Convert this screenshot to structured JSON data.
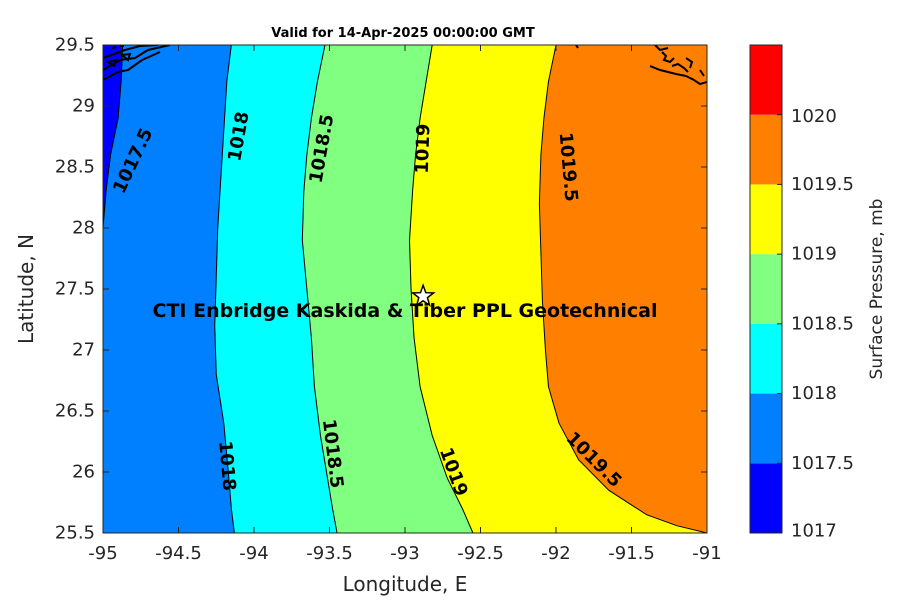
{
  "chart_data": {
    "type": "contour",
    "title": "Valid for 14-Apr-2025 00:00:00 GMT",
    "xlabel": "Longitude, E",
    "ylabel": "Latitude, N",
    "xlim": [
      -95,
      -91
    ],
    "ylim": [
      25.5,
      29.5
    ],
    "x_ticks": [
      -95,
      -94.5,
      -94,
      -93.5,
      -93,
      -92.5,
      -92,
      -91.5,
      -91
    ],
    "y_ticks": [
      25.5,
      26,
      26.5,
      27,
      27.5,
      28,
      28.5,
      29,
      29.5
    ],
    "colorbar": {
      "label": "Surface Pressure, mb",
      "ticks": [
        1017,
        1017.5,
        1018,
        1018.5,
        1019,
        1019.5,
        1020
      ],
      "levels": [
        {
          "min": 1017,
          "max": 1017.5,
          "color": "#0000ff"
        },
        {
          "min": 1017.5,
          "max": 1018,
          "color": "#0080ff"
        },
        {
          "min": 1018,
          "max": 1018.5,
          "color": "#00ffff"
        },
        {
          "min": 1018.5,
          "max": 1019,
          "color": "#80ff80"
        },
        {
          "min": 1019,
          "max": 1019.5,
          "color": "#ffff00"
        },
        {
          "min": 1019.5,
          "max": 1020,
          "color": "#ff8000"
        },
        {
          "min": 1020,
          "max": 1020.5,
          "color": "#ff0000"
        }
      ]
    },
    "contours": [
      {
        "level": 1017.5,
        "label": "1017.5",
        "points": [
          [
            -94.87,
            29.5
          ],
          [
            -94.88,
            29.2
          ],
          [
            -94.9,
            28.9
          ],
          [
            -94.95,
            28.6
          ],
          [
            -94.98,
            28.3
          ],
          [
            -95,
            28.0
          ],
          [
            -95,
            25.5
          ]
        ],
        "labels": [
          {
            "x": -94.8,
            "y": 28.55,
            "angle": -65
          }
        ]
      },
      {
        "level": 1018,
        "label": "1018",
        "points": [
          [
            -94.15,
            29.5
          ],
          [
            -94.18,
            29.2
          ],
          [
            -94.2,
            28.8
          ],
          [
            -94.22,
            28.4
          ],
          [
            -94.24,
            28.0
          ],
          [
            -94.25,
            27.6
          ],
          [
            -94.26,
            27.2
          ],
          [
            -94.25,
            26.8
          ],
          [
            -94.2,
            26.4
          ],
          [
            -94.17,
            26.0
          ],
          [
            -94.15,
            25.7
          ],
          [
            -94.13,
            25.5
          ]
        ],
        "labels": [
          {
            "x": -94.1,
            "y": 28.75,
            "angle": -80
          },
          {
            "x": -94.18,
            "y": 26.05,
            "angle": 85
          }
        ]
      },
      {
        "level": 1018.5,
        "label": "1018.5",
        "points": [
          [
            -93.53,
            29.5
          ],
          [
            -93.58,
            29.2
          ],
          [
            -93.62,
            28.9
          ],
          [
            -93.65,
            28.6
          ],
          [
            -93.67,
            28.3
          ],
          [
            -93.68,
            27.9
          ],
          [
            -93.65,
            27.5
          ],
          [
            -93.62,
            27.1
          ],
          [
            -93.6,
            26.7
          ],
          [
            -93.56,
            26.3
          ],
          [
            -93.52,
            26.0
          ],
          [
            -93.48,
            25.7
          ],
          [
            -93.45,
            25.5
          ]
        ],
        "labels": [
          {
            "x": -93.55,
            "y": 28.65,
            "angle": -80
          },
          {
            "x": -93.48,
            "y": 26.15,
            "angle": 83
          }
        ]
      },
      {
        "level": 1019,
        "label": "1019",
        "points": [
          [
            -92.82,
            29.5
          ],
          [
            -92.86,
            29.2
          ],
          [
            -92.9,
            28.9
          ],
          [
            -92.93,
            28.6
          ],
          [
            -92.95,
            28.3
          ],
          [
            -92.97,
            27.9
          ],
          [
            -92.96,
            27.5
          ],
          [
            -92.94,
            27.1
          ],
          [
            -92.9,
            26.7
          ],
          [
            -92.82,
            26.3
          ],
          [
            -92.72,
            25.95
          ],
          [
            -92.62,
            25.7
          ],
          [
            -92.55,
            25.5
          ]
        ],
        "labels": [
          {
            "x": -92.88,
            "y": 28.65,
            "angle": -88
          },
          {
            "x": -92.68,
            "y": 26.0,
            "angle": 70
          }
        ]
      },
      {
        "level": 1019.5,
        "label": "1019.5",
        "points": [
          [
            -92.0,
            29.5
          ],
          [
            -92.05,
            29.2
          ],
          [
            -92.08,
            28.9
          ],
          [
            -92.1,
            28.6
          ],
          [
            -92.11,
            28.2
          ],
          [
            -92.1,
            27.8
          ],
          [
            -92.09,
            27.4
          ],
          [
            -92.07,
            27.0
          ],
          [
            -92.05,
            26.7
          ],
          [
            -91.98,
            26.4
          ],
          [
            -91.85,
            26.1
          ],
          [
            -91.65,
            25.85
          ],
          [
            -91.4,
            25.65
          ],
          [
            -91.2,
            25.56
          ],
          [
            -91.0,
            25.5
          ]
        ],
        "labels": [
          {
            "x": -91.92,
            "y": 28.5,
            "angle": 85
          },
          {
            "x": -91.75,
            "y": 26.1,
            "angle": 45
          }
        ]
      }
    ],
    "marker": {
      "lon": -92.88,
      "lat": 27.44,
      "symbol": "star"
    },
    "annotation": {
      "text": "CTI Enbridge  Kaskida & Tiber PPL Geotechnical",
      "lon": -93.0,
      "lat": 27.32
    }
  }
}
